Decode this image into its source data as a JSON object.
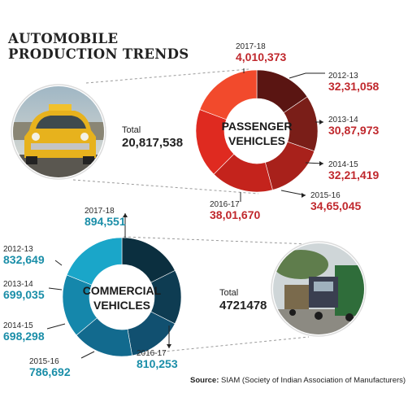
{
  "title_lines": [
    "AUTOMOBILE",
    "PRODUCTION TRENDS"
  ],
  "source": {
    "label": "Source:",
    "text": "SIAM (Society of Indian Association of Manufacturers)"
  },
  "chart_data": [
    {
      "type": "pie",
      "title": "PASSENGER VEHICLES",
      "title_lines": [
        "PASSENGER",
        "VEHICLES"
      ],
      "total_label": "Total",
      "total_value": "20,817,538",
      "slices": [
        {
          "year": "2012-13",
          "label": "32,31,058",
          "value": 3231058,
          "color": "#5a1512"
        },
        {
          "year": "2013-14",
          "label": "30,87,973",
          "value": 3087973,
          "color": "#7a1e18"
        },
        {
          "year": "2014-15",
          "label": "32,21,419",
          "value": 3221419,
          "color": "#a8211b"
        },
        {
          "year": "2015-16",
          "label": "34,65,045",
          "value": 3465045,
          "color": "#c4231c"
        },
        {
          "year": "2016-17",
          "label": "38,01,670",
          "value": 3801670,
          "color": "#df2a20"
        },
        {
          "year": "2017-18",
          "label": "4,010,373",
          "value": 4010373,
          "color": "#f24a2c"
        }
      ],
      "year_color": "#2a2a2a",
      "value_color": "#c0282d"
    },
    {
      "type": "pie",
      "title": "COMMERCIAL VEHICLES",
      "title_lines": [
        "COMMERCIAL",
        "VEHICLES"
      ],
      "total_label": "Total",
      "total_value": "4721478",
      "slices": [
        {
          "year": "2012-13",
          "label": "832,649",
          "value": 832649,
          "color": "#0b2f3f"
        },
        {
          "year": "2013-14",
          "label": "699,035",
          "value": 699035,
          "color": "#0e3c52"
        },
        {
          "year": "2014-15",
          "label": "698,298",
          "value": 698298,
          "color": "#115070"
        },
        {
          "year": "2015-16",
          "label": "786,692",
          "value": 786692,
          "color": "#126a8e"
        },
        {
          "year": "2016-17",
          "label": "810,253",
          "value": 810253,
          "color": "#1587ab"
        },
        {
          "year": "2017-18",
          "label": "894,551",
          "value": 894551,
          "color": "#1aa6c9"
        }
      ],
      "year_color": "#2a2a2a",
      "value_color": "#1a8ea8"
    }
  ]
}
